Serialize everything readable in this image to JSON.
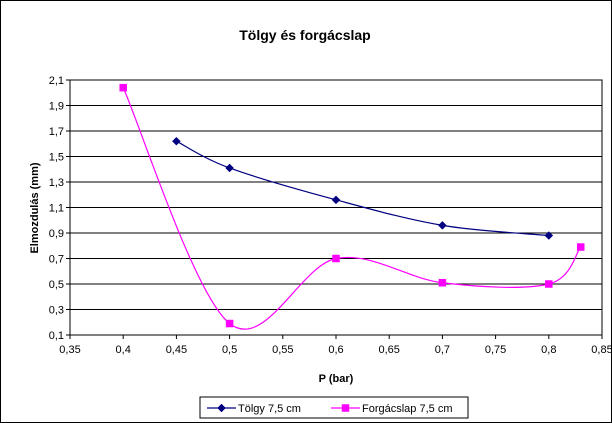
{
  "chart_data": {
    "type": "scatter",
    "title": "Tölgy és forgácslap",
    "xlabel": "P (bar)",
    "ylabel": "Elmozdulás (mm)",
    "xlim": [
      0.35,
      0.85
    ],
    "ylim": [
      0.1,
      2.1
    ],
    "xticks": [
      0.35,
      0.4,
      0.45,
      0.5,
      0.55,
      0.6,
      0.65,
      0.7,
      0.75,
      0.8,
      0.85
    ],
    "xtick_labels": [
      "0,35",
      "0,4",
      "0,45",
      "0,5",
      "0,55",
      "0,6",
      "0,65",
      "0,7",
      "0,75",
      "0,8",
      "0,85"
    ],
    "yticks": [
      0.1,
      0.3,
      0.5,
      0.7,
      0.9,
      1.1,
      1.3,
      1.5,
      1.7,
      1.9,
      2.1
    ],
    "ytick_labels": [
      "0,1",
      "0,3",
      "0,5",
      "0,7",
      "0,9",
      "1,1",
      "1,3",
      "1,5",
      "1,7",
      "1,9",
      "2,1"
    ],
    "grid": "horizontal",
    "legend_position": "bottom",
    "series": [
      {
        "name": "Tölgy 7,5 cm",
        "color": "#000080",
        "marker": "diamond",
        "smooth": true,
        "x": [
          0.45,
          0.5,
          0.6,
          0.7,
          0.8
        ],
        "y": [
          1.62,
          1.41,
          1.16,
          0.96,
          0.88
        ]
      },
      {
        "name": "Forgácslap 7,5 cm",
        "color": "#ff00ff",
        "marker": "square",
        "smooth": true,
        "x": [
          0.4,
          0.5,
          0.6,
          0.7,
          0.8,
          0.83
        ],
        "y": [
          2.04,
          0.19,
          0.7,
          0.51,
          0.5,
          0.79
        ]
      }
    ]
  }
}
